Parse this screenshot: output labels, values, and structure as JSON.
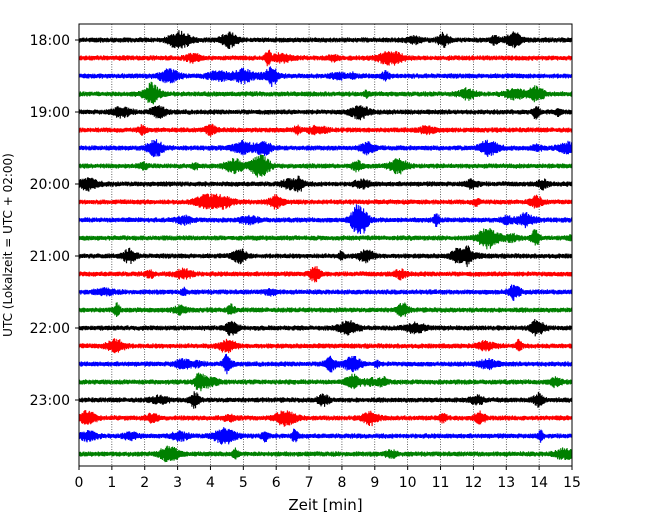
{
  "chart_data": {
    "type": "line",
    "title": "",
    "xlabel": "Zeit  [min]",
    "ylabel": "UTC (Lokalzeit = UTC + 02:00)",
    "xlim": [
      0,
      15
    ],
    "x_ticks": [
      "0",
      "1",
      "2",
      "3",
      "4",
      "5",
      "6",
      "7",
      "8",
      "9",
      "10",
      "11",
      "12",
      "13",
      "14",
      "15"
    ],
    "y_ticks": [
      "18:00",
      "19:00",
      "20:00",
      "21:00",
      "22:00",
      "23:00"
    ],
    "grid": "vertical dotted at each minute",
    "trace_interval_minutes": 15,
    "trace_start": "18:00",
    "trace_count": 24,
    "trace_colors": [
      "#000000",
      "#ff0000",
      "#0000ff",
      "#008000"
    ],
    "series": [
      {
        "start": "18:00",
        "color": "#000000"
      },
      {
        "start": "18:15",
        "color": "#ff0000"
      },
      {
        "start": "18:30",
        "color": "#0000ff"
      },
      {
        "start": "18:45",
        "color": "#008000"
      },
      {
        "start": "19:00",
        "color": "#000000"
      },
      {
        "start": "19:15",
        "color": "#ff0000"
      },
      {
        "start": "19:30",
        "color": "#0000ff"
      },
      {
        "start": "19:45",
        "color": "#008000"
      },
      {
        "start": "20:00",
        "color": "#000000"
      },
      {
        "start": "20:15",
        "color": "#ff0000"
      },
      {
        "start": "20:30",
        "color": "#0000ff"
      },
      {
        "start": "20:45",
        "color": "#008000"
      },
      {
        "start": "21:00",
        "color": "#000000"
      },
      {
        "start": "21:15",
        "color": "#ff0000"
      },
      {
        "start": "21:30",
        "color": "#0000ff"
      },
      {
        "start": "21:45",
        "color": "#008000"
      },
      {
        "start": "22:00",
        "color": "#000000"
      },
      {
        "start": "22:15",
        "color": "#ff0000"
      },
      {
        "start": "22:30",
        "color": "#0000ff"
      },
      {
        "start": "22:45",
        "color": "#008000"
      },
      {
        "start": "23:00",
        "color": "#000000"
      },
      {
        "start": "23:15",
        "color": "#ff0000"
      },
      {
        "start": "23:30",
        "color": "#0000ff"
      },
      {
        "start": "23:45",
        "color": "#008000"
      }
    ]
  }
}
